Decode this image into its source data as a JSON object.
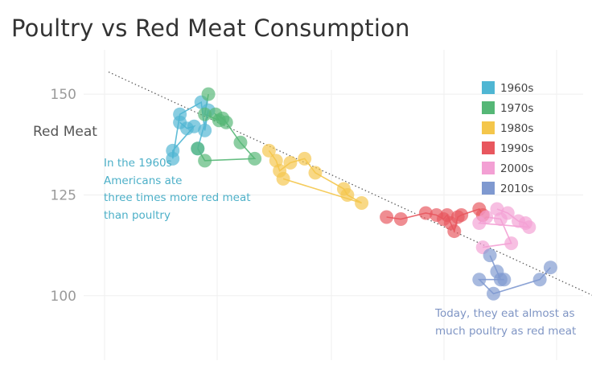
{
  "chart_data": {
    "type": "scatter",
    "title": "Poultry vs Red Meat Consumption",
    "ylabel": "Red Meat",
    "xlabel": "",
    "yticks": [
      100,
      125,
      150
    ],
    "ylim": [
      84,
      160
    ],
    "xlim": [
      34,
      106
    ],
    "grid": true,
    "trendline": {
      "style": "dotted",
      "from": [
        37.5,
        155.5
      ],
      "to": [
        105.5,
        100
      ]
    },
    "legend_position": "top-right",
    "annotations": [
      {
        "text": "In the 1960s\nAmericans ate\nthree times more red meat\nthan poultry",
        "color": "#4db0c8"
      },
      {
        "text": "Today, they eat almost as\nmuch poultry as red meat",
        "color": "#7f95c4"
      }
    ],
    "series": [
      {
        "name": "1960s",
        "color": "#4fb6d3",
        "values": [
          [
            47.5,
            143
          ],
          [
            48.5,
            141.5
          ],
          [
            49.5,
            142
          ],
          [
            46.5,
            136
          ],
          [
            46.5,
            134
          ],
          [
            47.5,
            145
          ],
          [
            50.5,
            148
          ],
          [
            51,
            141
          ],
          [
            51.5,
            146
          ],
          [
            50,
            136.5
          ]
        ]
      },
      {
        "name": "1970s",
        "color": "#55b776",
        "values": [
          [
            51.5,
            150
          ],
          [
            51,
            145
          ],
          [
            53,
            143.5
          ],
          [
            52.5,
            145
          ],
          [
            53.5,
            144
          ],
          [
            54,
            143
          ],
          [
            56,
            138
          ],
          [
            58,
            134
          ],
          [
            51,
            133.5
          ],
          [
            50,
            136.5
          ]
        ]
      },
      {
        "name": "1980s",
        "color": "#f4c64b",
        "values": [
          [
            60,
            136
          ],
          [
            61,
            133.5
          ],
          [
            61.5,
            131
          ],
          [
            63,
            133
          ],
          [
            65,
            134
          ],
          [
            66.5,
            130.5
          ],
          [
            70.5,
            126.5
          ],
          [
            71,
            125
          ],
          [
            73,
            123
          ],
          [
            62,
            129
          ]
        ]
      },
      {
        "name": "1990s",
        "color": "#e8575e",
        "values": [
          [
            76.5,
            119.5
          ],
          [
            78.5,
            119
          ],
          [
            82,
            120.5
          ],
          [
            83.5,
            120
          ],
          [
            84.5,
            119
          ],
          [
            85,
            120
          ],
          [
            85.5,
            118
          ],
          [
            86,
            116
          ],
          [
            86.5,
            119.5
          ],
          [
            87,
            120
          ],
          [
            89.5,
            121.5
          ],
          [
            90,
            120
          ]
        ]
      },
      {
        "name": "2000s",
        "color": "#f3a0d4",
        "values": [
          [
            92,
            121.5
          ],
          [
            93.5,
            120.5
          ],
          [
            95,
            118.5
          ],
          [
            96,
            118
          ],
          [
            96.5,
            117
          ],
          [
            89.5,
            118
          ],
          [
            90.5,
            119.5
          ],
          [
            92.5,
            119
          ],
          [
            94,
            113
          ],
          [
            90,
            112
          ]
        ]
      },
      {
        "name": "2010s",
        "color": "#7f99d0",
        "values": [
          [
            91,
            110
          ],
          [
            92,
            106
          ],
          [
            92.5,
            104
          ],
          [
            93,
            104
          ],
          [
            89.5,
            104
          ],
          [
            91.5,
            100.5
          ],
          [
            98,
            104
          ],
          [
            99.5,
            107
          ]
        ]
      }
    ]
  }
}
